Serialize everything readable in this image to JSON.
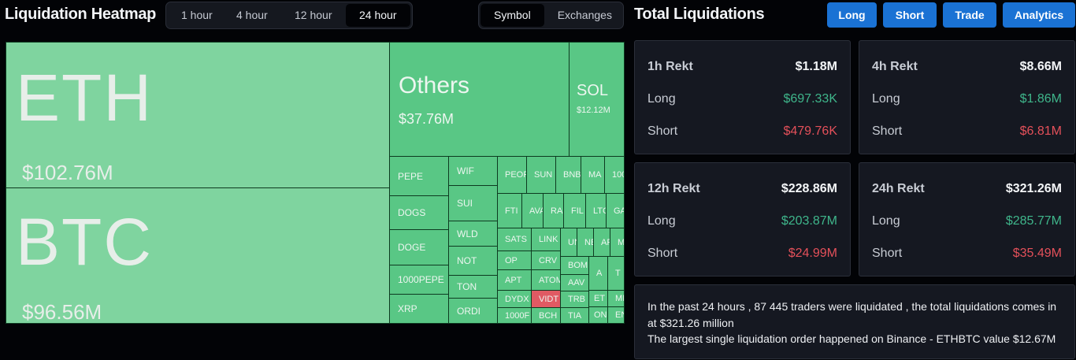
{
  "heatmap": {
    "title": "Liquidation Heatmap",
    "time_options": [
      "1 hour",
      "4 hour",
      "12 hour",
      "24 hour"
    ],
    "selected_time": "24 hour",
    "view_options": [
      "Symbol",
      "Exchanges"
    ],
    "selected_view": "Symbol",
    "cells": [
      {
        "symbol": "ETH",
        "value": "$102.76M"
      },
      {
        "symbol": "BTC",
        "value": "$96.56M"
      },
      {
        "symbol": "Others",
        "value": "$37.76M"
      },
      {
        "symbol": "SOL",
        "value": "$12.12M"
      },
      {
        "symbol": "PEPE"
      },
      {
        "symbol": "DOGS"
      },
      {
        "symbol": "DOGE"
      },
      {
        "symbol": "1000PEPE"
      },
      {
        "symbol": "XRP"
      },
      {
        "symbol": "WIF"
      },
      {
        "symbol": "SUI"
      },
      {
        "symbol": "WLD"
      },
      {
        "symbol": "NOT"
      },
      {
        "symbol": "TON"
      },
      {
        "symbol": "ORDI"
      },
      {
        "symbol": "PEOPLE"
      },
      {
        "symbol": "SUN"
      },
      {
        "symbol": "BNB"
      },
      {
        "symbol": "MA"
      },
      {
        "symbol": "100"
      },
      {
        "symbol": "FTI"
      },
      {
        "symbol": "AVA"
      },
      {
        "symbol": "RA"
      },
      {
        "symbol": "FIL"
      },
      {
        "symbol": "LTC"
      },
      {
        "symbol": "GA"
      },
      {
        "symbol": "SATS"
      },
      {
        "symbol": "LINK"
      },
      {
        "symbol": "OP"
      },
      {
        "symbol": "CRV"
      },
      {
        "symbol": "APT"
      },
      {
        "symbol": "ATOM"
      },
      {
        "symbol": "DYDX"
      },
      {
        "symbol": "VIDT",
        "negative": true
      },
      {
        "symbol": "1000F"
      },
      {
        "symbol": "BCH"
      },
      {
        "symbol": "UN"
      },
      {
        "symbol": "NE"
      },
      {
        "symbol": "AR"
      },
      {
        "symbol": "M"
      },
      {
        "symbol": "BOM"
      },
      {
        "symbol": "AAV"
      },
      {
        "symbol": "TRB"
      },
      {
        "symbol": "TIA"
      },
      {
        "symbol": "A"
      },
      {
        "symbol": "T"
      },
      {
        "symbol": "ET"
      },
      {
        "symbol": "MI"
      },
      {
        "symbol": "ON"
      },
      {
        "symbol": "EN"
      }
    ]
  },
  "total": {
    "title": "Total Liquidations",
    "buttons": [
      "Long",
      "Short",
      "Trade",
      "Analytics"
    ],
    "cards": [
      {
        "label": "1h Rekt",
        "total": "$1.18M",
        "long_label": "Long",
        "long": "$697.33K",
        "short_label": "Short",
        "short": "$479.76K"
      },
      {
        "label": "4h Rekt",
        "total": "$8.66M",
        "long_label": "Long",
        "long": "$1.86M",
        "short_label": "Short",
        "short": "$6.81M"
      },
      {
        "label": "12h Rekt",
        "total": "$228.86M",
        "long_label": "Long",
        "long": "$203.87M",
        "short_label": "Short",
        "short": "$24.99M"
      },
      {
        "label": "24h Rekt",
        "total": "$321.26M",
        "long_label": "Long",
        "long": "$285.77M",
        "short_label": "Short",
        "short": "$35.49M"
      }
    ],
    "summary_line1": "In the past 24 hours , 87 445 traders were liquidated , the total liquidations comes in at $321.26 million",
    "summary_line2": "The largest single liquidation order happened on Binance - ETHBTC value $12.67M"
  },
  "colors": {
    "accent": "#1a72d4",
    "long": "#3fb68b",
    "short": "#e4505a",
    "heat_green": "#59c785",
    "heat_light": "#7fd49f",
    "heat_red": "#e05a63"
  }
}
